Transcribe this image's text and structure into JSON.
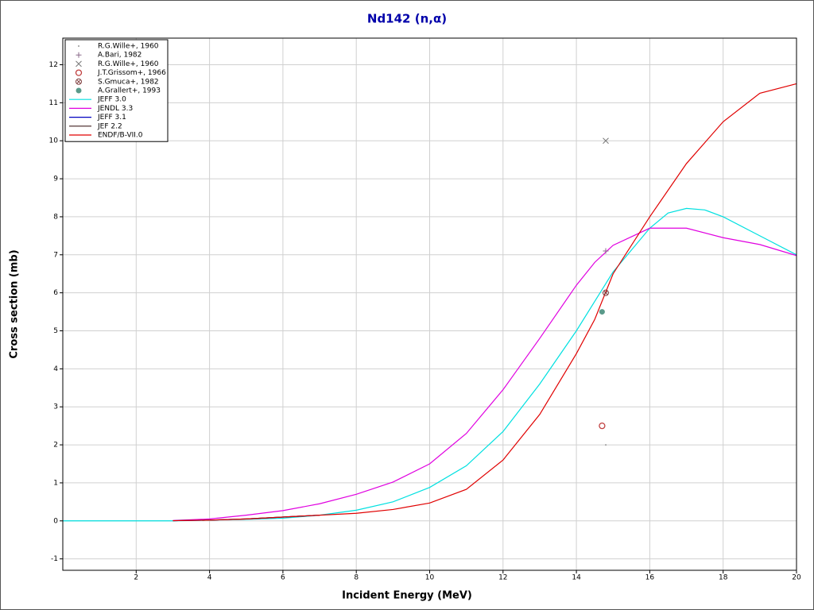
{
  "chart_data": {
    "type": "line",
    "title": "Nd142 (n,α)",
    "x_label": "Incident Energy (MeV)",
    "y_label": "Cross section (mb)",
    "xlim": [
      0,
      20
    ],
    "ylim": [
      -1.3,
      12.7
    ],
    "xticks": [
      2,
      4,
      6,
      8,
      10,
      12,
      14,
      16,
      18,
      20
    ],
    "yticks": [
      -1,
      0,
      1,
      2,
      3,
      4,
      5,
      6,
      7,
      8,
      9,
      10,
      11,
      12
    ],
    "grid": true,
    "legend": "upper-left",
    "series": [
      {
        "name": "R.G.Wille+, 1960",
        "marker": "dot",
        "color": "#999999",
        "x": [
          14.8
        ],
        "values": [
          2.0
        ]
      },
      {
        "name": "A.Bari, 1982",
        "marker": "plus",
        "color": "#8a6a8a",
        "x": [
          14.8
        ],
        "values": [
          7.1
        ]
      },
      {
        "name": "R.G.Wille+, 1960",
        "marker": "x",
        "color": "#777777",
        "x": [
          14.8
        ],
        "values": [
          10.0
        ]
      },
      {
        "name": "J.T.Grissom+, 1966",
        "marker": "circle",
        "color": "#c04040",
        "x": [
          14.7
        ],
        "values": [
          2.5
        ]
      },
      {
        "name": "S.Gmuca+, 1982",
        "marker": "circle-x",
        "color": "#804040",
        "x": [
          14.8
        ],
        "values": [
          6.0
        ]
      },
      {
        "name": "A.Grallert+, 1993",
        "marker": "filled-circle",
        "color": "#5a9a8a",
        "x": [
          14.7
        ],
        "values": [
          5.5
        ]
      },
      {
        "name": "JEFF 3.0",
        "color": "#00e0e0",
        "x": [
          0,
          1,
          2,
          3,
          4,
          5,
          6,
          7,
          8,
          9,
          10,
          11,
          12,
          13,
          14,
          15,
          16,
          16.5,
          17,
          17.5,
          18,
          19,
          20
        ],
        "values": [
          0,
          0,
          0,
          0,
          0.02,
          0.04,
          0.07,
          0.15,
          0.28,
          0.5,
          0.88,
          1.45,
          2.35,
          3.6,
          5.0,
          6.55,
          7.7,
          8.1,
          8.22,
          8.18,
          8.0,
          7.5,
          7.0
        ]
      },
      {
        "name": "JENDL 3.3",
        "color": "#e000e0",
        "x": [
          3,
          4,
          5,
          6,
          7,
          8,
          9,
          10,
          11,
          12,
          13,
          14,
          14.5,
          15,
          16,
          17,
          18,
          19,
          20
        ],
        "values": [
          0.01,
          0.05,
          0.15,
          0.27,
          0.45,
          0.7,
          1.02,
          1.5,
          2.3,
          3.45,
          4.8,
          6.2,
          6.8,
          7.25,
          7.7,
          7.7,
          7.45,
          7.27,
          6.98
        ]
      },
      {
        "name": "JEFF 3.1",
        "color": "#0000c0",
        "x": [
          3,
          4,
          5,
          6,
          7
        ],
        "values": [
          0.005,
          0.02,
          0.05,
          0.1,
          0.15
        ]
      },
      {
        "name": "JEF 2.2",
        "color": "#402020",
        "x": [
          3,
          4,
          5,
          6,
          7
        ],
        "values": [
          0.005,
          0.02,
          0.05,
          0.1,
          0.15
        ]
      },
      {
        "name": "ENDF/B-VII.0",
        "color": "#e00000",
        "x": [
          3,
          4,
          5,
          6,
          7,
          8,
          9,
          10,
          11,
          12,
          13,
          14,
          14.5,
          15,
          16,
          17,
          18,
          19,
          20
        ],
        "values": [
          0.005,
          0.02,
          0.05,
          0.1,
          0.15,
          0.2,
          0.3,
          0.47,
          0.83,
          1.6,
          2.8,
          4.4,
          5.3,
          6.5,
          8.0,
          9.4,
          10.5,
          11.25,
          11.5
        ]
      }
    ]
  }
}
